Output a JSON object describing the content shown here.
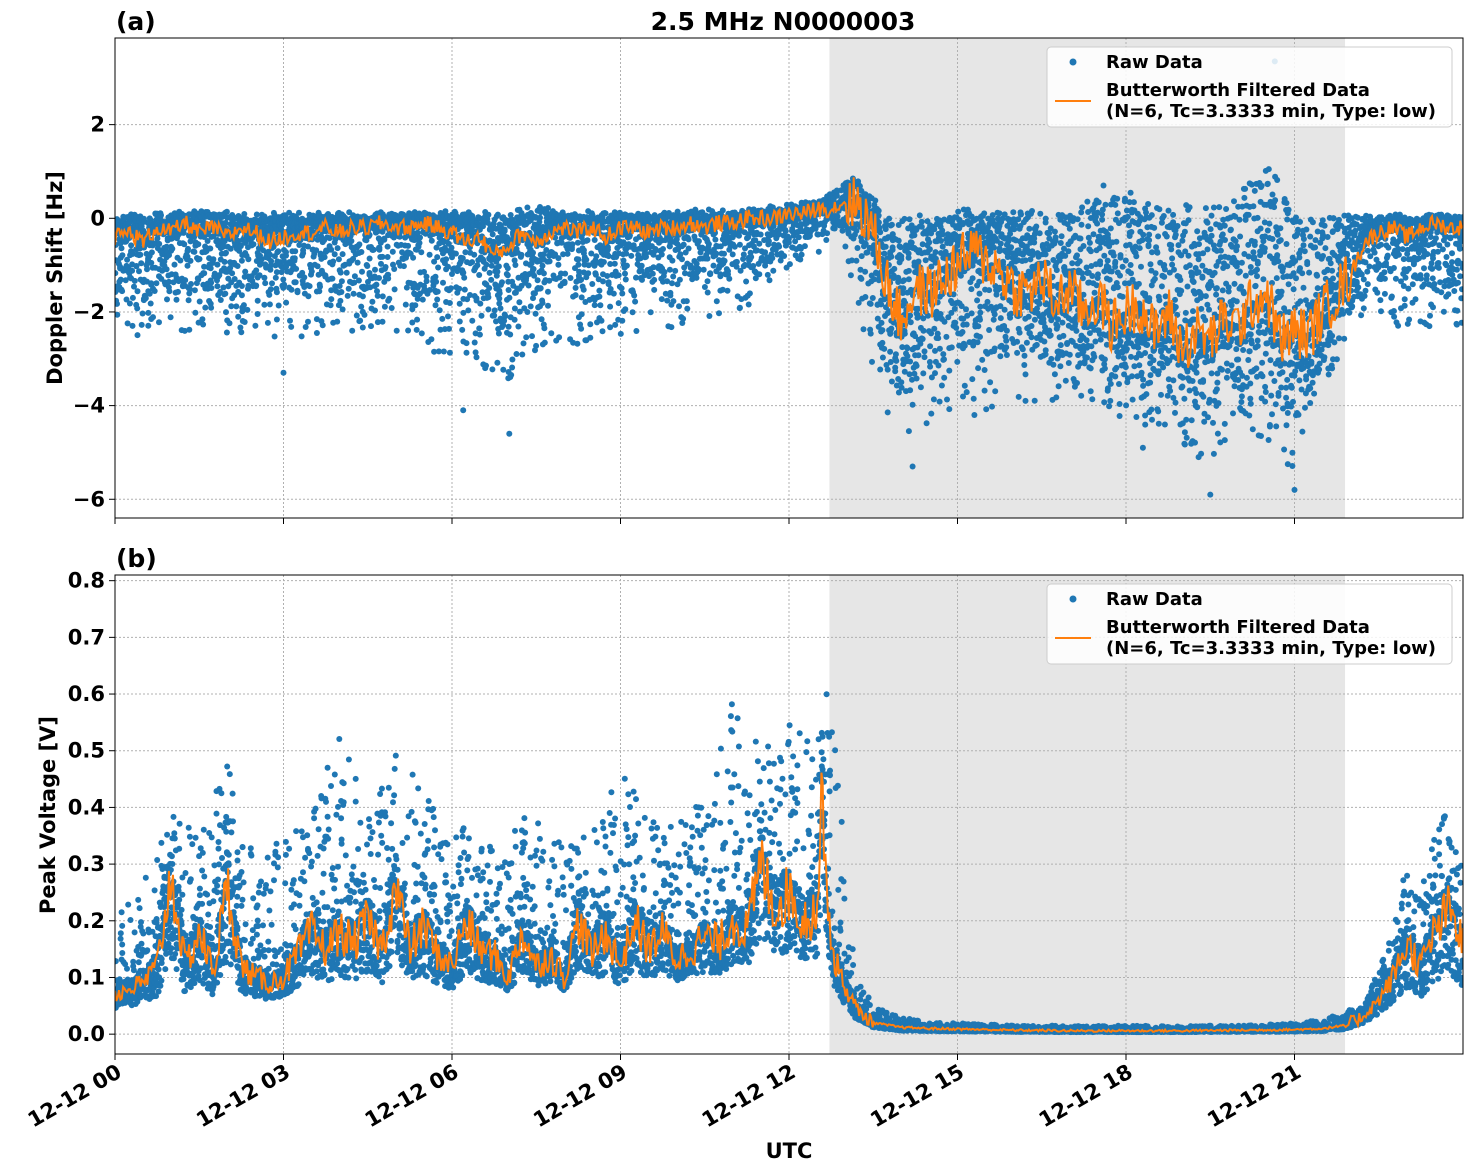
{
  "figure": {
    "title": "2.5 MHz N0000003",
    "xlabel": "UTC",
    "colors": {
      "raw": "#1f77b4",
      "filtered": "#ff7f0e",
      "shade": "#e6e6e6",
      "grid": "#b0b0b0"
    }
  },
  "chart_data": [
    {
      "type": "scatter",
      "panel_label": "(a)",
      "ylabel": "Doppler Shift [Hz]",
      "x_unit": "hours since 12-12 00 UTC",
      "xlim": [
        0,
        24
      ],
      "ylim": [
        -6.4,
        3.85
      ],
      "yticks": [
        2,
        0,
        -2,
        -4,
        -6
      ],
      "ytick_labels": [
        "2",
        "0",
        "−2",
        "−4",
        "−6"
      ],
      "grid": true,
      "legend": {
        "position": "top-right",
        "entries": [
          "Raw Data",
          "Butterworth Filtered Data",
          "(N=6, Tc=3.3333 min, Type: low)"
        ]
      },
      "shaded_interval": [
        12.72,
        21.9
      ],
      "series": [
        {
          "name": "Raw Data",
          "kind": "scatter",
          "x": [
            0,
            0.5,
            1,
            1.5,
            2,
            2.5,
            3,
            3.5,
            4,
            4.5,
            5,
            5.5,
            6,
            6.5,
            7,
            7.5,
            8,
            8.5,
            9,
            9.5,
            10,
            10.5,
            11,
            11.5,
            12,
            12.5,
            12.75,
            13,
            13.25,
            13.5,
            13.75,
            14,
            14.5,
            15,
            15.5,
            16,
            16.5,
            17,
            17.5,
            18,
            18.5,
            19,
            19.5,
            20,
            20.5,
            21,
            21.5,
            22,
            22.5,
            23,
            23.5,
            24
          ],
          "y_upper": [
            0.1,
            0.1,
            0.15,
            0.2,
            0.15,
            0.15,
            0.15,
            0.15,
            0.15,
            0.15,
            0.2,
            0.15,
            0.2,
            0.15,
            0.2,
            0.3,
            0.2,
            0.15,
            0.2,
            0.15,
            0.2,
            0.2,
            0.2,
            0.25,
            0.3,
            0.4,
            0.6,
            0.85,
            0.9,
            0.5,
            0.1,
            0.1,
            0.1,
            0.3,
            0.2,
            0.3,
            0.2,
            0.2,
            0.5,
            0.6,
            0.3,
            0.3,
            0.3,
            0.5,
            1.5,
            0.1,
            0.1,
            0.1,
            0.1,
            0.1,
            0.1,
            0.1
          ],
          "y_lower": [
            -2.8,
            -2.6,
            -2.5,
            -2.4,
            -2.5,
            -2.4,
            -2.6,
            -2.5,
            -2.4,
            -2.5,
            -2.5,
            -2.8,
            -3.0,
            -3.2,
            -3.5,
            -2.8,
            -2.6,
            -2.8,
            -2.5,
            -2.4,
            -2.4,
            -2.2,
            -2.0,
            -1.8,
            -1.0,
            -0.8,
            -0.3,
            -0.6,
            -2.5,
            -3.6,
            -4.5,
            -4.6,
            -4.4,
            -4.2,
            -4.2,
            -4.0,
            -4.0,
            -3.8,
            -4.0,
            -4.3,
            -4.6,
            -5.0,
            -5.2,
            -4.6,
            -4.8,
            -5.5,
            -3.6,
            -2.5,
            -2.0,
            -2.5,
            -2.3,
            -2.4
          ],
          "y_outliers": [
            [
              7.02,
              -4.6
            ],
            [
              3.0,
              -3.3
            ],
            [
              6.2,
              -4.1
            ],
            [
              15.3,
              -4.2
            ],
            [
              19.5,
              -5.9
            ],
            [
              21.0,
              -5.8
            ],
            [
              20.65,
              3.35
            ],
            [
              14.2,
              -5.3
            ],
            [
              17.6,
              0.7
            ],
            [
              18.3,
              -4.9
            ]
          ]
        },
        {
          "name": "Butterworth Filtered Data",
          "kind": "line",
          "x": [
            0,
            0.25,
            0.5,
            0.75,
            1,
            1.25,
            1.5,
            1.75,
            2,
            2.25,
            2.5,
            2.75,
            3,
            3.25,
            3.5,
            3.75,
            4,
            4.25,
            4.5,
            4.75,
            5,
            5.25,
            5.5,
            5.75,
            6,
            6.25,
            6.5,
            6.75,
            7,
            7.25,
            7.5,
            7.75,
            8,
            8.25,
            8.5,
            8.75,
            9,
            9.25,
            9.5,
            9.75,
            10,
            10.25,
            10.5,
            10.75,
            11,
            11.25,
            11.5,
            11.75,
            12,
            12.25,
            12.5,
            12.75,
            13,
            13.25,
            13.5,
            13.75,
            14,
            14.25,
            14.5,
            14.75,
            15,
            15.25,
            15.5,
            15.75,
            16,
            16.25,
            16.5,
            16.75,
            17,
            17.25,
            17.5,
            17.75,
            18,
            18.25,
            18.5,
            18.75,
            19,
            19.25,
            19.5,
            19.75,
            20,
            20.25,
            20.5,
            20.75,
            21,
            21.25,
            21.5,
            21.75,
            22,
            22.25,
            22.5,
            22.75,
            23,
            23.25,
            23.5,
            23.75,
            24
          ],
          "y": [
            -0.4,
            -0.3,
            -0.5,
            -0.2,
            -0.3,
            -0.1,
            -0.3,
            -0.2,
            -0.4,
            -0.2,
            -0.3,
            -0.5,
            -0.4,
            -0.3,
            -0.3,
            -0.2,
            -0.3,
            -0.2,
            -0.2,
            -0.1,
            -0.2,
            -0.2,
            -0.1,
            -0.2,
            -0.3,
            -0.5,
            -0.4,
            -0.8,
            -0.6,
            -0.3,
            -0.5,
            -0.3,
            -0.2,
            -0.3,
            -0.2,
            -0.4,
            -0.2,
            -0.2,
            -0.3,
            -0.2,
            -0.2,
            -0.1,
            -0.2,
            -0.1,
            -0.1,
            0.0,
            0.0,
            0.0,
            0.1,
            0.1,
            0.2,
            0.2,
            0.35,
            0.3,
            -0.3,
            -1.4,
            -2.2,
            -1.5,
            -1.6,
            -1.3,
            -1.0,
            -0.7,
            -0.9,
            -1.1,
            -1.5,
            -1.6,
            -1.3,
            -1.8,
            -1.5,
            -2.0,
            -1.7,
            -2.3,
            -2.0,
            -1.8,
            -2.5,
            -2.0,
            -2.8,
            -2.4,
            -2.6,
            -2.2,
            -2.3,
            -1.8,
            -1.6,
            -2.6,
            -2.4,
            -2.5,
            -2.0,
            -1.6,
            -1.2,
            -0.5,
            -0.3,
            -0.2,
            -0.4,
            -0.2,
            -0.1,
            -0.2,
            -0.2
          ]
        }
      ]
    },
    {
      "type": "scatter",
      "panel_label": "(b)",
      "ylabel": "Peak Voltage [V]",
      "x_unit": "hours since 12-12 00 UTC",
      "xlim": [
        0,
        24
      ],
      "ylim": [
        -0.035,
        0.81
      ],
      "yticks": [
        0.0,
        0.1,
        0.2,
        0.3,
        0.4,
        0.5,
        0.6,
        0.7,
        0.8
      ],
      "ytick_labels": [
        "0.0",
        "0.1",
        "0.2",
        "0.3",
        "0.4",
        "0.5",
        "0.6",
        "0.7",
        "0.8"
      ],
      "xtick_labels": [
        "12-12 00",
        "12-12 03",
        "12-12 06",
        "12-12 09",
        "12-12 12",
        "12-12 15",
        "12-12 18",
        "12-12 21"
      ],
      "xticks": [
        0,
        3,
        6,
        9,
        12,
        15,
        18,
        21
      ],
      "grid": true,
      "legend": {
        "position": "top-right",
        "entries": [
          "Raw Data",
          "Butterworth Filtered Data",
          "(N=6, Tc=3.3333 min, Type: low)"
        ]
      },
      "shaded_interval": [
        12.72,
        21.9
      ],
      "series": [
        {
          "name": "Raw Data",
          "kind": "scatter",
          "x": [
            0,
            0.5,
            1,
            1.5,
            2,
            2.5,
            3,
            3.5,
            4,
            4.5,
            5,
            5.5,
            6,
            6.5,
            7,
            7.5,
            8,
            8.5,
            9,
            9.5,
            10,
            10.5,
            11,
            11.5,
            12,
            12.5,
            12.75,
            13,
            13.25,
            13.5,
            14,
            14.5,
            15,
            16,
            17,
            18,
            19,
            20,
            21,
            21.5,
            21.9,
            22.2,
            22.5,
            22.8,
            23,
            23.3,
            23.6,
            24
          ],
          "y_upper": [
            0.2,
            0.27,
            0.4,
            0.35,
            0.48,
            0.3,
            0.35,
            0.38,
            0.55,
            0.4,
            0.56,
            0.44,
            0.38,
            0.35,
            0.36,
            0.4,
            0.33,
            0.36,
            0.47,
            0.38,
            0.37,
            0.42,
            0.6,
            0.5,
            0.55,
            0.5,
            0.77,
            0.25,
            0.1,
            0.05,
            0.03,
            0.02,
            0.02,
            0.015,
            0.015,
            0.015,
            0.015,
            0.015,
            0.02,
            0.025,
            0.04,
            0.05,
            0.12,
            0.22,
            0.3,
            0.28,
            0.42,
            0.3
          ],
          "y_lower": [
            0.03,
            0.03,
            0.035,
            0.04,
            0.04,
            0.04,
            0.045,
            0.05,
            0.05,
            0.05,
            0.05,
            0.05,
            0.05,
            0.05,
            0.06,
            0.06,
            0.06,
            0.06,
            0.06,
            0.06,
            0.07,
            0.07,
            0.07,
            0.08,
            0.08,
            0.08,
            0.06,
            0.02,
            0.01,
            0.005,
            0.002,
            0.002,
            0.002,
            0.002,
            0.002,
            0.002,
            0.002,
            0.002,
            0.002,
            0.002,
            0.005,
            0.01,
            0.02,
            0.03,
            0.03,
            0.03,
            0.03,
            0.03
          ]
        },
        {
          "name": "Butterworth Filtered Data",
          "kind": "line",
          "x": [
            0,
            0.25,
            0.5,
            0.75,
            1,
            1.25,
            1.5,
            1.75,
            2,
            2.25,
            2.5,
            2.75,
            3,
            3.25,
            3.5,
            3.75,
            4,
            4.25,
            4.5,
            4.75,
            5,
            5.25,
            5.5,
            5.75,
            6,
            6.25,
            6.5,
            6.75,
            7,
            7.25,
            7.5,
            7.75,
            8,
            8.25,
            8.5,
            8.75,
            9,
            9.25,
            9.5,
            9.75,
            10,
            10.25,
            10.5,
            10.75,
            11,
            11.25,
            11.5,
            11.75,
            12,
            12.25,
            12.5,
            12.6,
            12.75,
            13,
            13.25,
            13.5,
            14,
            14.5,
            15,
            16,
            17,
            18,
            19,
            20,
            21,
            21.5,
            21.9,
            22.2,
            22.5,
            22.75,
            23,
            23.25,
            23.5,
            23.75,
            24
          ],
          "y": [
            0.07,
            0.08,
            0.09,
            0.12,
            0.28,
            0.12,
            0.18,
            0.11,
            0.26,
            0.12,
            0.1,
            0.09,
            0.1,
            0.14,
            0.18,
            0.15,
            0.18,
            0.16,
            0.2,
            0.15,
            0.26,
            0.15,
            0.19,
            0.14,
            0.12,
            0.2,
            0.15,
            0.14,
            0.1,
            0.18,
            0.12,
            0.14,
            0.1,
            0.2,
            0.14,
            0.18,
            0.12,
            0.2,
            0.15,
            0.18,
            0.13,
            0.15,
            0.17,
            0.16,
            0.2,
            0.18,
            0.3,
            0.22,
            0.25,
            0.2,
            0.22,
            0.43,
            0.15,
            0.08,
            0.04,
            0.02,
            0.012,
            0.01,
            0.009,
            0.007,
            0.006,
            0.006,
            0.006,
            0.007,
            0.008,
            0.01,
            0.015,
            0.03,
            0.06,
            0.1,
            0.16,
            0.12,
            0.18,
            0.22,
            0.16
          ]
        }
      ]
    }
  ]
}
